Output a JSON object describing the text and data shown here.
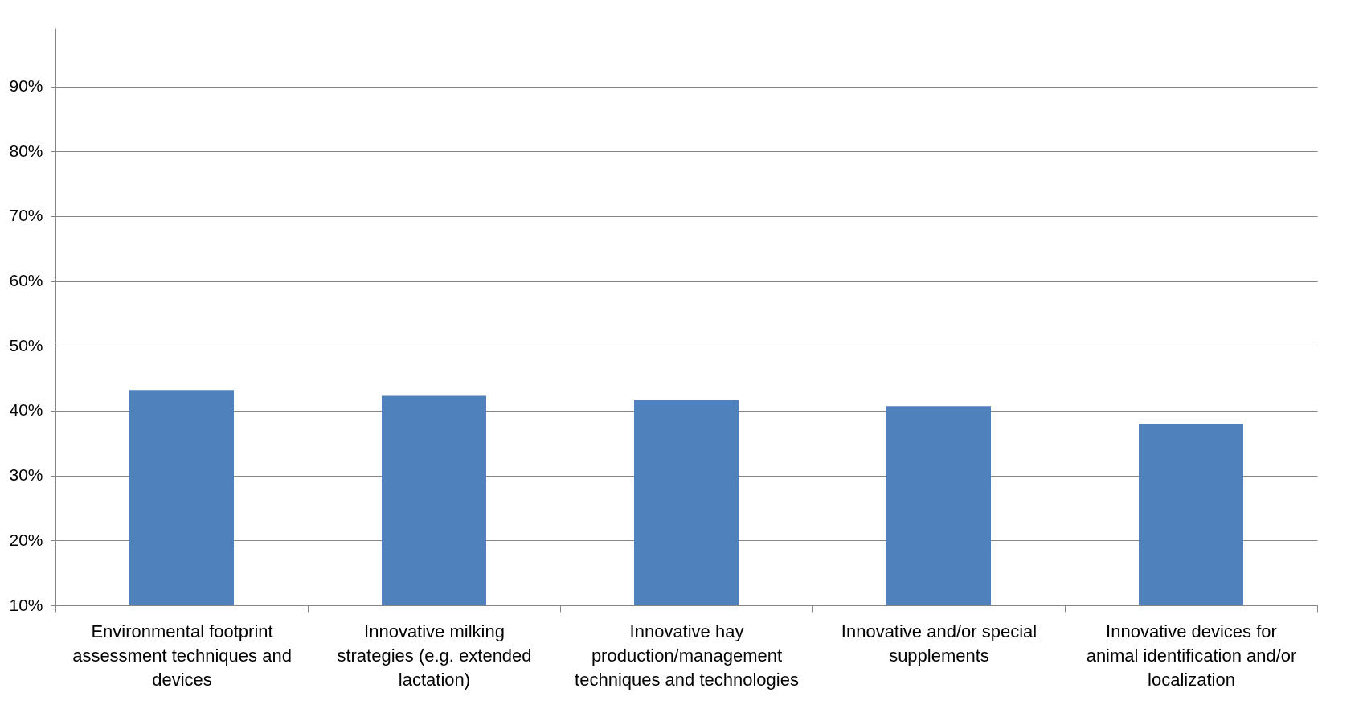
{
  "chart_data": {
    "type": "bar",
    "categories": [
      "Environmental footprint\nassessment techniques and\ndevices",
      "Innovative milking\nstrategies (e.g. extended\nlactation)",
      "Innovative hay\nproduction/management\ntechniques and technologies",
      "Innovative and/or special\nsupplements",
      "Innovative devices for\nanimal identification and/or\nlocalization"
    ],
    "values": [
      43.2,
      42.3,
      41.6,
      40.7,
      38.0
    ],
    "color": "#4f81bd",
    "ylim": [
      10,
      99
    ],
    "yticks": [
      {
        "value": 10,
        "label": "10%"
      },
      {
        "value": 20,
        "label": "20%"
      },
      {
        "value": 30,
        "label": "30%"
      },
      {
        "value": 40,
        "label": "40%"
      },
      {
        "value": 50,
        "label": "50%"
      },
      {
        "value": 60,
        "label": "60%"
      },
      {
        "value": 70,
        "label": "70%"
      },
      {
        "value": 80,
        "label": "80%"
      },
      {
        "value": 90,
        "label": "90%"
      }
    ],
    "grid": "y"
  }
}
